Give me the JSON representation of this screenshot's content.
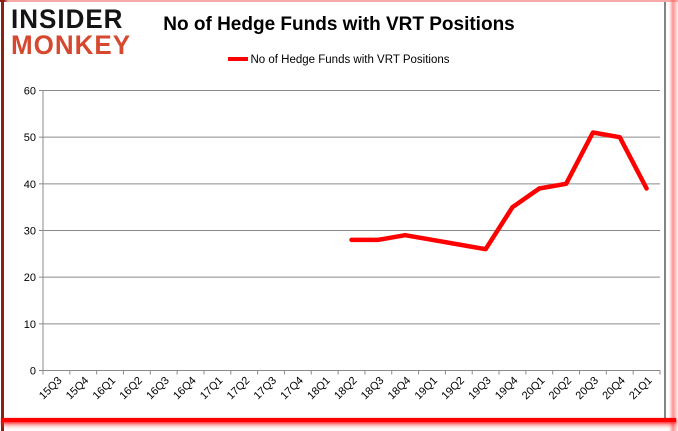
{
  "logo": {
    "line1": "INSIDER",
    "line2": "MONKEY"
  },
  "chart": {
    "title": "No of Hedge Funds with VRT Positions",
    "legend_label": "No of Hedge Funds with VRT Positions"
  },
  "chart_data": {
    "type": "line",
    "title": "No of Hedge Funds with VRT Positions",
    "legend": [
      "No of Hedge Funds with VRT Positions"
    ],
    "legend_position": "top",
    "grid": true,
    "categories": [
      "15Q3",
      "15Q4",
      "16Q1",
      "16Q2",
      "16Q3",
      "16Q4",
      "17Q1",
      "17Q2",
      "17Q3",
      "17Q4",
      "18Q1",
      "18Q2",
      "18Q3",
      "18Q4",
      "19Q1",
      "19Q2",
      "19Q3",
      "19Q4",
      "20Q1",
      "20Q2",
      "20Q3",
      "20Q4",
      "21Q1"
    ],
    "series": [
      {
        "name": "No of Hedge Funds with VRT Positions",
        "values": [
          null,
          null,
          null,
          null,
          null,
          null,
          null,
          null,
          null,
          null,
          null,
          28,
          28,
          29,
          28,
          27,
          26,
          35,
          39,
          40,
          51,
          50,
          39
        ]
      }
    ],
    "xlabel": "",
    "ylabel": "",
    "ylim": [
      0,
      60
    ],
    "ytick_step": 10
  },
  "colors": {
    "series_red": "#FE0000",
    "logo_black": "#141414",
    "logo_red": "#D6492F",
    "grid_gray": "#8a8a8a",
    "frame_bottom_red": "#FF0000",
    "frame_left_maroon": "#8C2014",
    "frame_pink": "#F5A9A9"
  }
}
